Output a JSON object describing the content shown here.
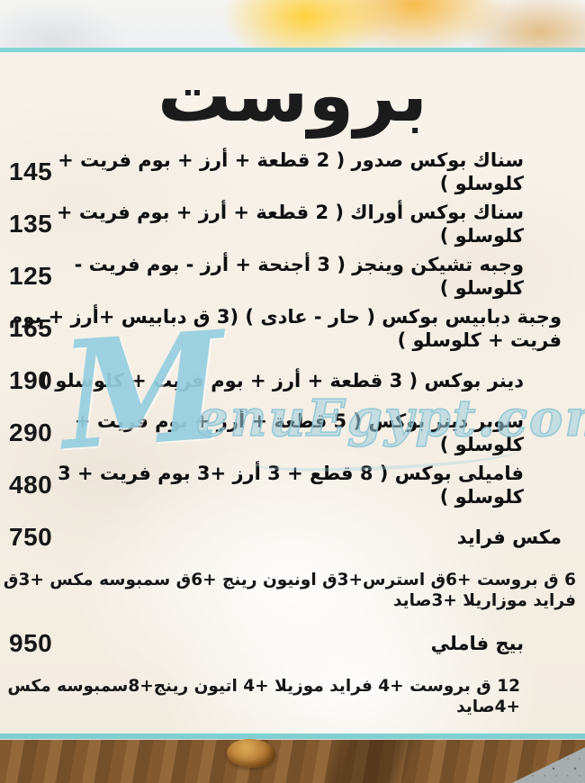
{
  "page": {
    "title": "بروست"
  },
  "watermark": {
    "initial": "M",
    "text": "enuEgypt.com"
  },
  "menu": {
    "items": [
      {
        "price": "145",
        "label": "سناك بوكس صدور ( 2 قطعة + أرز + بوم فريت + كلوسلو )"
      },
      {
        "price": "135",
        "label": "سناك بوكس أوراك ( 2 قطعة + أرز + بوم فريت + كلوسلو )"
      },
      {
        "price": "125",
        "label": "وجبه تشيكن وينجز ( 3 أجنحة + أرز - بوم فريت - كلوسلو )"
      },
      {
        "price": "165",
        "label": "وجبة دبابيس بوكس ( حار - عادى ) (3 ق دبابيس +أرز + بوم فريت + كلوسلو )"
      },
      {
        "price": "190",
        "label": "دينر بوكس ( 3 قطعة + أرز + بوم فريت + كلوسلو )"
      },
      {
        "price": "290",
        "label": "سوبر دينر بوكس ( 5 قطعة + أرز + بوم فريت + كلوسلو )"
      },
      {
        "price": "480",
        "label": "فاميلى بوكس ( 8 قطع + 3 أرز +3 بوم فريت + 3 كلوسلو )"
      },
      {
        "price": "750",
        "label": "مكس فرايد"
      },
      {
        "price": "",
        "label": "6 ق بروست +6ق استرس+3ق اونيون رينج +6ق سمبوسه مكس +3ق فرايد موزاريلا +3صايد"
      },
      {
        "price": "950",
        "label": "بيج فاملي"
      },
      {
        "price": "",
        "label": "12 ق بروست +4 فرايد موزيلا +4 اتيون رينج+8سمبوسه مكس +4صايد"
      }
    ]
  },
  "colors": {
    "accent_teal": "#82d3d4",
    "watermark_blue": "#9ccedd",
    "text": "#101010",
    "panel_bg": "#f6efe5",
    "wood_brown": "#83592f"
  }
}
